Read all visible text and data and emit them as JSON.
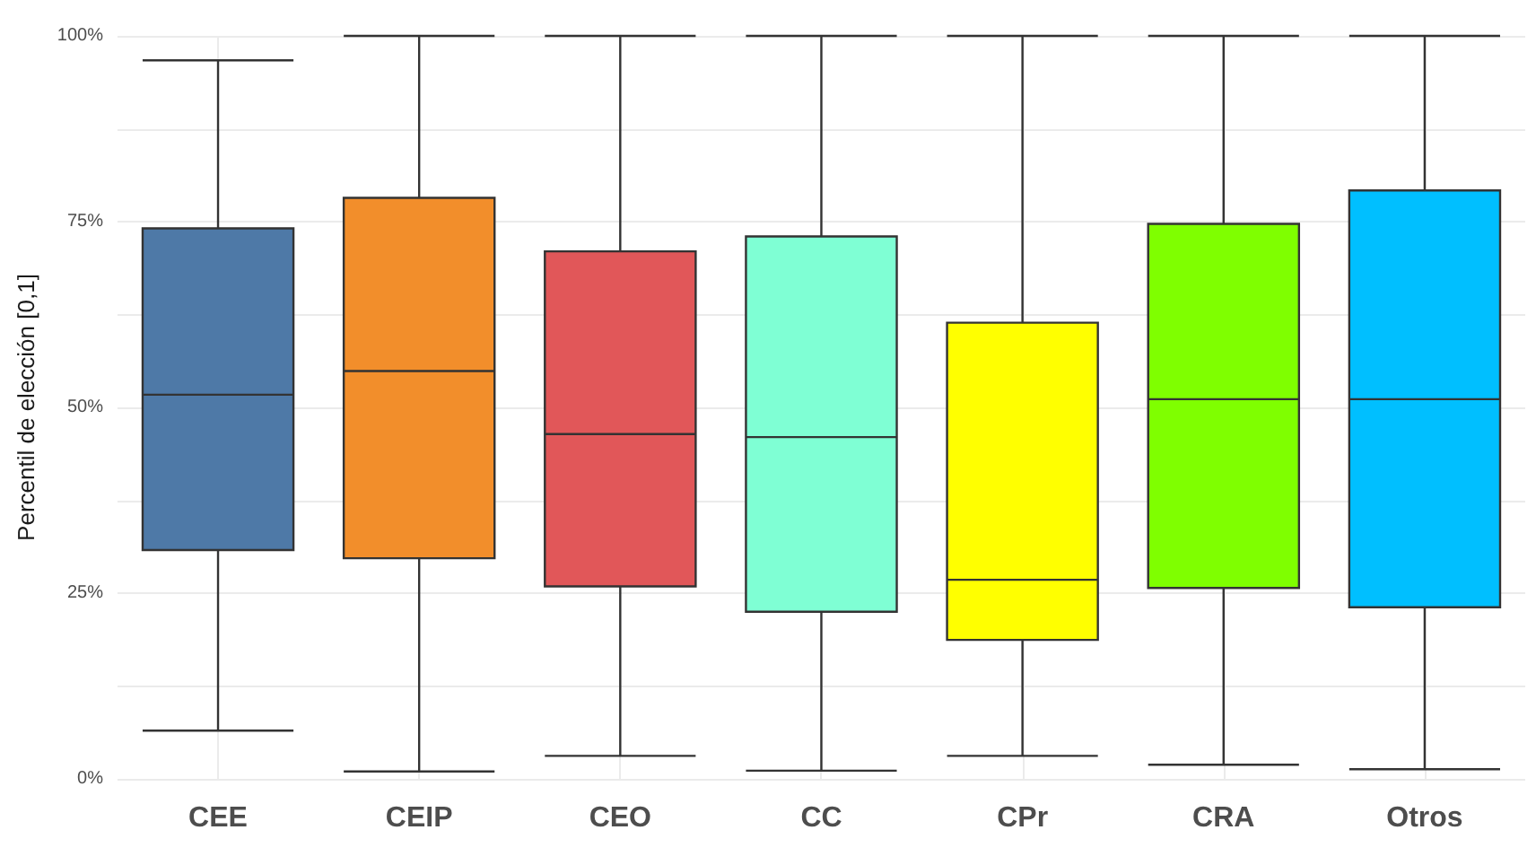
{
  "chart_data": {
    "type": "box",
    "ylabel": "Percentil de elección [0,1]",
    "categories": [
      "CEE",
      "CEIP",
      "CEO",
      "CC",
      "CPr",
      "CRA",
      "Otros"
    ],
    "colors": [
      "#4e79a7",
      "#f28e2b",
      "#e15759",
      "#7fffd4",
      "#ffff00",
      "#7fff00",
      "#00bfff"
    ],
    "boxes": [
      {
        "low": 6.5,
        "q1": 30.8,
        "median": 51.7,
        "q3": 74.1,
        "high": 96.7
      },
      {
        "low": 1.0,
        "q1": 29.7,
        "median": 54.9,
        "q3": 78.2,
        "high": 100
      },
      {
        "low": 3.1,
        "q1": 25.9,
        "median": 46.4,
        "q3": 71.0,
        "high": 100
      },
      {
        "low": 1.1,
        "q1": 22.5,
        "median": 46.0,
        "q3": 73.0,
        "high": 100
      },
      {
        "low": 3.1,
        "q1": 18.7,
        "median": 26.8,
        "q3": 61.4,
        "high": 100
      },
      {
        "low": 1.9,
        "q1": 25.7,
        "median": 51.1,
        "q3": 74.7,
        "high": 100
      },
      {
        "low": 1.3,
        "q1": 23.1,
        "median": 51.1,
        "q3": 79.2,
        "high": 100
      }
    ],
    "ylim": [
      0,
      100
    ],
    "yticks": [
      {
        "value": 0,
        "label": "0%"
      },
      {
        "value": 12.5,
        "label": null
      },
      {
        "value": 25,
        "label": "25%"
      },
      {
        "value": 37.5,
        "label": null
      },
      {
        "value": 50,
        "label": "50%"
      },
      {
        "value": 62.5,
        "label": null
      },
      {
        "value": 75,
        "label": "75%"
      },
      {
        "value": 87.5,
        "label": null
      },
      {
        "value": 100,
        "label": "100%"
      }
    ],
    "grid": true
  }
}
